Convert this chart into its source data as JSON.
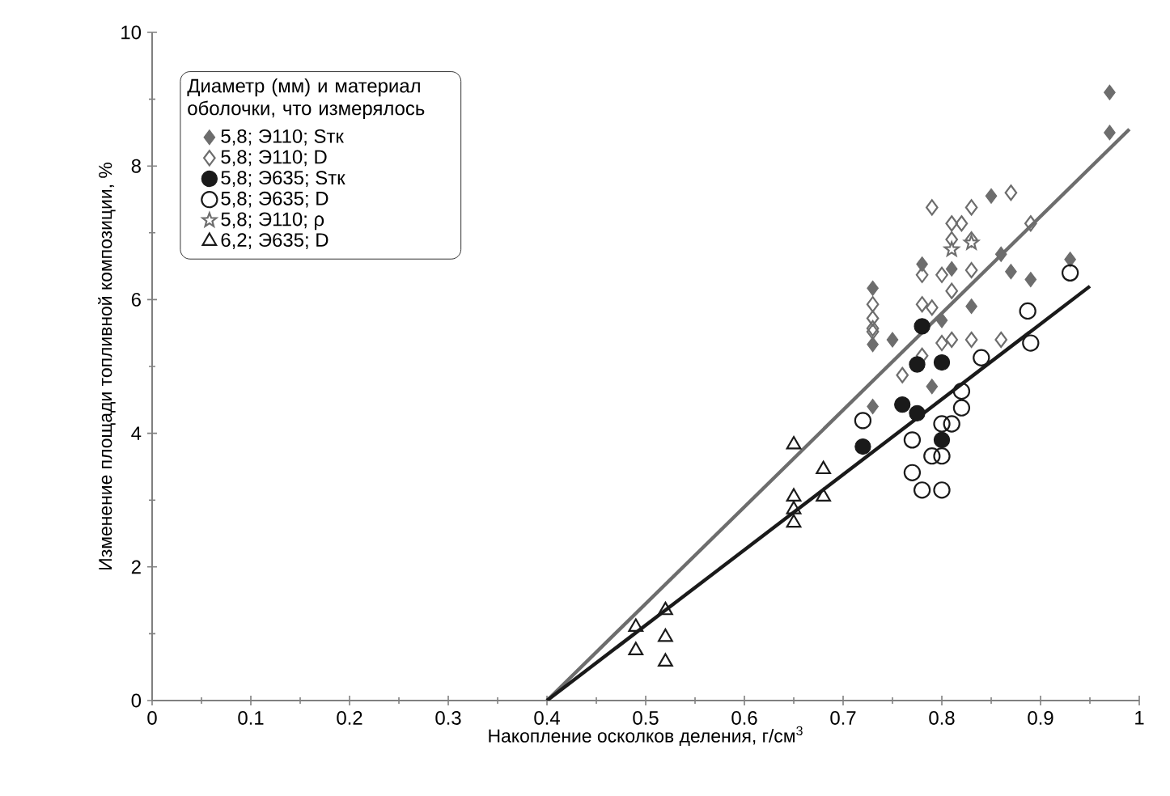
{
  "chart_data": {
    "type": "scatter",
    "xlabel": "Накопление осколков деления, г/см$^{3}$",
    "ylabel": "Изменение площади топливной композиции, %",
    "legend_title": "Диаметр (мм) и материал оболочки, что измерялось",
    "legend": "top left",
    "grid": false,
    "xlim": [
      0,
      1
    ],
    "ylim": [
      0,
      10
    ],
    "xticks": [
      0,
      0.1,
      0.2,
      0.3,
      0.4,
      0.5,
      0.6,
      0.7,
      0.8,
      0.9,
      1
    ],
    "yticks": [
      0,
      2,
      4,
      6,
      8,
      10
    ],
    "series": [
      {
        "name": "5,8; Э110; Sтк",
        "color": "#6d6d6d",
        "marker": "diamond",
        "x": [
          0.97,
          0.97,
          0.85,
          0.86,
          0.87,
          0.89,
          0.93,
          0.78,
          0.81,
          0.73,
          0.83,
          0.73,
          0.75,
          0.8,
          0.73,
          0.79
        ],
        "values": [
          9.1,
          8.5,
          7.55,
          6.68,
          6.42,
          6.3,
          6.6,
          6.53,
          6.46,
          6.17,
          5.9,
          5.33,
          5.4,
          5.69,
          4.4,
          4.7
        ]
      },
      {
        "name": "5,8; Э110; D",
        "color": "#6d6d6d",
        "marker": "diamond",
        "x": [
          0.79,
          0.87,
          0.83,
          0.81,
          0.82,
          0.83,
          0.81,
          0.78,
          0.8,
          0.83,
          0.89,
          0.73,
          0.73,
          0.73,
          0.78,
          0.79,
          0.81,
          0.83,
          0.86,
          0.8,
          0.81,
          0.73,
          0.78,
          0.76
        ],
        "values": [
          7.38,
          7.6,
          7.38,
          7.14,
          7.14,
          6.9,
          6.9,
          6.37,
          6.37,
          6.44,
          7.14,
          5.93,
          5.72,
          5.57,
          5.93,
          5.88,
          6.13,
          5.4,
          5.4,
          5.35,
          5.4,
          5.52,
          5.16,
          4.87
        ]
      },
      {
        "name": "5,8; Э635; Sтк",
        "color": "#1a1a1a",
        "marker": "circle",
        "x": [
          0.78,
          0.775,
          0.8,
          0.76,
          0.775,
          0.72,
          0.8
        ],
        "values": [
          5.6,
          5.03,
          5.06,
          4.43,
          4.3,
          3.8,
          3.9
        ]
      },
      {
        "name": "5,8; Э635; D",
        "color": "#1a1a1a",
        "marker": "circle",
        "x": [
          0.93,
          0.887,
          0.89,
          0.84,
          0.82,
          0.82,
          0.81,
          0.8,
          0.77,
          0.79,
          0.8,
          0.77,
          0.78,
          0.8,
          0.72
        ],
        "values": [
          6.4,
          5.83,
          5.35,
          5.13,
          4.63,
          4.38,
          4.14,
          4.14,
          3.9,
          3.66,
          3.66,
          3.41,
          3.15,
          3.15,
          4.19
        ]
      },
      {
        "name": "5,8; Э110; ρ",
        "color": "#6d6d6d",
        "marker": "star",
        "x": [
          0.81,
          0.83
        ],
        "values": [
          6.75,
          6.85
        ]
      },
      {
        "name": "6,2; Э635; D",
        "color": "#1a1a1a",
        "marker": "triangle",
        "x": [
          0.65,
          0.68,
          0.65,
          0.68,
          0.65,
          0.65,
          0.49,
          0.52,
          0.52,
          0.49,
          0.52
        ],
        "values": [
          3.83,
          3.46,
          3.05,
          3.05,
          2.86,
          2.66,
          1.1,
          1.35,
          0.95,
          0.75,
          0.58
        ]
      },
      {
        "type": "line",
        "color": "#6d6d6d",
        "marker": "none",
        "x": [
          0.4,
          0.99
        ],
        "values": [
          0,
          8.55
        ]
      },
      {
        "type": "line",
        "color": "#1a1a1a",
        "marker": "none",
        "x": [
          0.4,
          0.95
        ],
        "values": [
          0,
          6.2
        ]
      }
    ]
  }
}
